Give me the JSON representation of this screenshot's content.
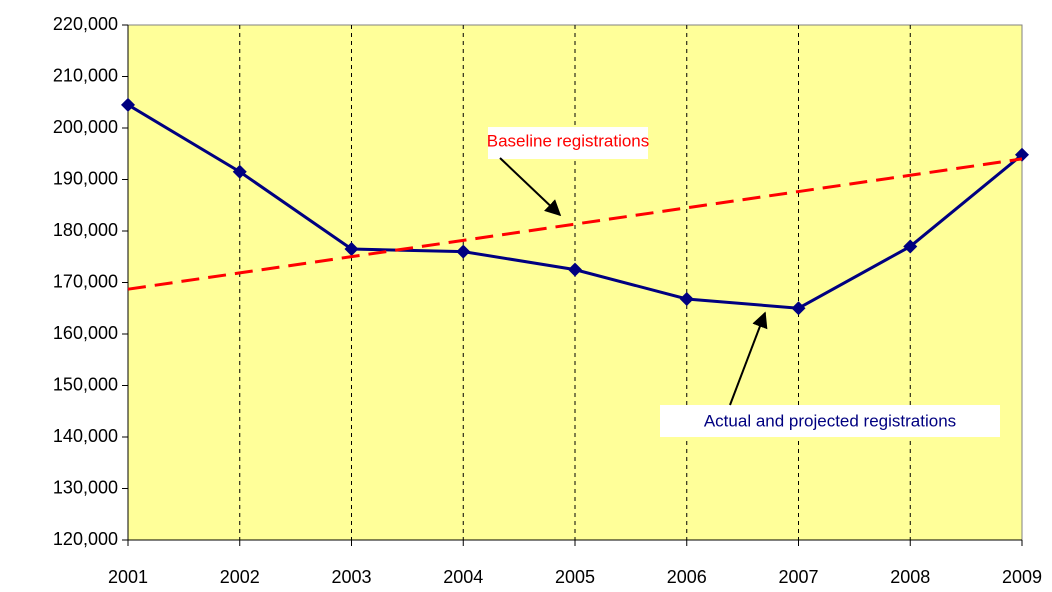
{
  "chart_data": {
    "type": "line",
    "x": [
      2001,
      2002,
      2003,
      2004,
      2005,
      2006,
      2007,
      2008,
      2009
    ],
    "xlim": [
      2001,
      2009
    ],
    "xticks": [
      2001,
      2002,
      2003,
      2004,
      2005,
      2006,
      2007,
      2008,
      2009
    ],
    "ylim": [
      120000,
      220000
    ],
    "yticks": [
      {
        "value": 120000,
        "label": "120,000"
      },
      {
        "value": 130000,
        "label": "130,000"
      },
      {
        "value": 140000,
        "label": "140,000"
      },
      {
        "value": 150000,
        "label": "150,000"
      },
      {
        "value": 160000,
        "label": "160,000"
      },
      {
        "value": 170000,
        "label": "170,000"
      },
      {
        "value": 180000,
        "label": "180,000"
      },
      {
        "value": 190000,
        "label": "190,000"
      },
      {
        "value": 200000,
        "label": "200,000"
      },
      {
        "value": 210000,
        "label": "210,000"
      },
      {
        "value": 220000,
        "label": "220,000"
      }
    ],
    "grid": "x",
    "series": [
      {
        "name": "Actual and projected registrations",
        "color": "#000080",
        "marker": "diamond",
        "values": [
          204500,
          191500,
          176500,
          176000,
          172500,
          166800,
          165000,
          177000,
          194800
        ]
      },
      {
        "name": "Baseline registrations",
        "color": "#ff0000",
        "style": "dashed",
        "values": [
          168700,
          171860,
          175020,
          178180,
          181340,
          184500,
          187660,
          190820,
          194000
        ]
      }
    ]
  }
}
